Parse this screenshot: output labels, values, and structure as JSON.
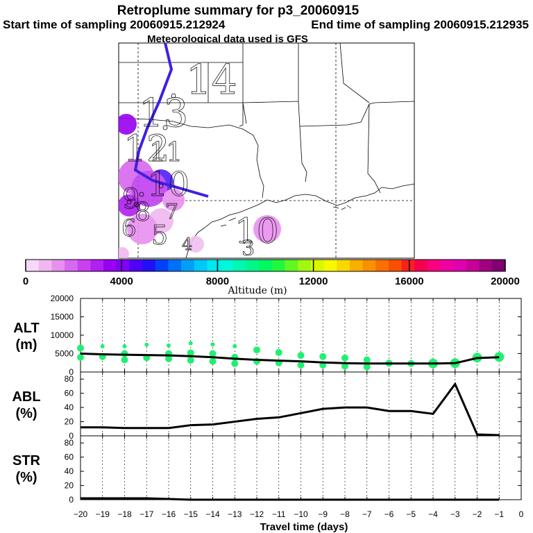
{
  "header": {
    "title": "Retroplume summary for p3_20060915",
    "start_label": "Start time of sampling 20060915.212924",
    "end_label": "End time of sampling 20060915.212935",
    "met_label": "Meteorological data used is GFS"
  },
  "map": {
    "track_color": "#4020e0",
    "day_labels": [
      "14",
      "13",
      "12",
      "11",
      "10",
      "10",
      "9",
      "8",
      "7",
      "6",
      "5",
      "4",
      "3"
    ]
  },
  "colorbar": {
    "ticks": [
      "0",
      "4000",
      "8000",
      "12000",
      "16000",
      "20000"
    ],
    "label": "Altitude (m)",
    "colors": [
      "#f8d8f8",
      "#f0b8f0",
      "#e890f0",
      "#d868f0",
      "#c840f0",
      "#b020f0",
      "#9800f0",
      "#8000f8",
      "#5000f8",
      "#2010f8",
      "#0040f8",
      "#0070f8",
      "#00a0f8",
      "#00c8f8",
      "#00e8f0",
      "#00f8d8",
      "#00f8b0",
      "#00f888",
      "#00f860",
      "#20f840",
      "#60f820",
      "#a0f810",
      "#d8f800",
      "#f8f800",
      "#f8d800",
      "#f8b000",
      "#f89000",
      "#f87000",
      "#f85000",
      "#f82020",
      "#f80050",
      "#f80080",
      "#f000a0",
      "#e000b0",
      "#c80098",
      "#a00080",
      "#800070"
    ]
  },
  "chart_data": [
    {
      "type": "line",
      "ylabel": "ALT\n(m)",
      "ylabel_lines": [
        "ALT",
        "(m)"
      ],
      "x": [
        -20,
        -19,
        -18,
        -17,
        -16,
        -15,
        -14,
        -13,
        -12,
        -11,
        -10,
        -9,
        -8,
        -7,
        -6,
        -5,
        -4,
        -3,
        -2,
        -1
      ],
      "values": [
        5000,
        4800,
        4700,
        4600,
        4500,
        4300,
        4000,
        3600,
        3300,
        3100,
        2900,
        2600,
        2400,
        2300,
        2300,
        2300,
        2300,
        2400,
        3800,
        4000
      ],
      "ylim": [
        0,
        20000
      ],
      "yticks": [
        "0",
        "5000",
        "10000",
        "15000",
        "20000"
      ],
      "scatter": [
        {
          "x": -20,
          "y": 6500
        },
        {
          "x": -20,
          "y": 4000
        },
        {
          "x": -19,
          "y": 7000
        },
        {
          "x": -19,
          "y": 4200
        },
        {
          "x": -18,
          "y": 7000
        },
        {
          "x": -18,
          "y": 5000
        },
        {
          "x": -18,
          "y": 3300
        },
        {
          "x": -17,
          "y": 7400
        },
        {
          "x": -17,
          "y": 3900
        },
        {
          "x": -16,
          "y": 7200
        },
        {
          "x": -16,
          "y": 5000
        },
        {
          "x": -16,
          "y": 3600
        },
        {
          "x": -15,
          "y": 7800
        },
        {
          "x": -15,
          "y": 5200
        },
        {
          "x": -15,
          "y": 3200
        },
        {
          "x": -14,
          "y": 7500
        },
        {
          "x": -14,
          "y": 5000
        },
        {
          "x": -14,
          "y": 2900
        },
        {
          "x": -13,
          "y": 7000
        },
        {
          "x": -13,
          "y": 4000
        },
        {
          "x": -13,
          "y": 2300
        },
        {
          "x": -12,
          "y": 6000
        },
        {
          "x": -12,
          "y": 2900
        },
        {
          "x": -11,
          "y": 5300
        },
        {
          "x": -11,
          "y": 2500
        },
        {
          "x": -10,
          "y": 4500
        },
        {
          "x": -10,
          "y": 1900
        },
        {
          "x": -9,
          "y": 4200
        },
        {
          "x": -9,
          "y": 1900
        },
        {
          "x": -8,
          "y": 3800
        },
        {
          "x": -8,
          "y": 1600
        },
        {
          "x": -7,
          "y": 3300
        },
        {
          "x": -7,
          "y": 1400
        },
        {
          "x": -6,
          "y": 2400
        },
        {
          "x": -5,
          "y": 2300
        },
        {
          "x": -4,
          "y": 2300
        },
        {
          "x": -3,
          "y": 2400
        },
        {
          "x": -2,
          "y": 3900
        },
        {
          "x": -1,
          "y": 4100
        }
      ],
      "scatter_color": "#20f070"
    },
    {
      "type": "line",
      "ylabel": "ABL\n(%)",
      "ylabel_lines": [
        "ABL",
        "(%)"
      ],
      "x": [
        -20,
        -19,
        -18,
        -17,
        -16,
        -15,
        -14,
        -13,
        -12,
        -11,
        -10,
        -9,
        -8,
        -7,
        -6,
        -5,
        -4,
        -3,
        -2,
        -1
      ],
      "values": [
        12,
        12,
        11,
        11,
        11,
        15,
        16,
        20,
        24,
        26,
        32,
        38,
        40,
        40,
        35,
        35,
        31,
        73,
        2,
        1
      ],
      "ylim": [
        0,
        90
      ],
      "yticks": [
        "0",
        "20",
        "40",
        "60",
        "80"
      ]
    },
    {
      "type": "line",
      "ylabel": "STR\n(%)",
      "ylabel_lines": [
        "STR",
        "(%)"
      ],
      "x": [
        -20,
        -19,
        -18,
        -17,
        -16,
        -15,
        -14,
        -13,
        -12,
        -11,
        -10,
        -9,
        -8,
        -7,
        -6,
        -5,
        -4,
        -3,
        -2,
        -1
      ],
      "values": [
        2,
        2,
        2,
        2,
        1,
        0,
        0,
        0,
        0,
        0,
        0,
        0,
        0,
        0,
        0,
        0,
        0,
        0,
        0,
        0
      ],
      "ylim": [
        0,
        90
      ],
      "yticks": [
        "0",
        "20",
        "40",
        "60",
        "80"
      ],
      "xlabel": "Travel time (days)",
      "xticks": [
        "−20",
        "−19",
        "−18",
        "−17",
        "−16",
        "−15",
        "−14",
        "−13",
        "−12",
        "−11",
        "−10",
        "−9",
        "−8",
        "−7",
        "−6",
        "−5",
        "−4",
        "−3",
        "−2",
        "−1",
        "0"
      ],
      "xlim": [
        -20,
        0
      ]
    }
  ]
}
